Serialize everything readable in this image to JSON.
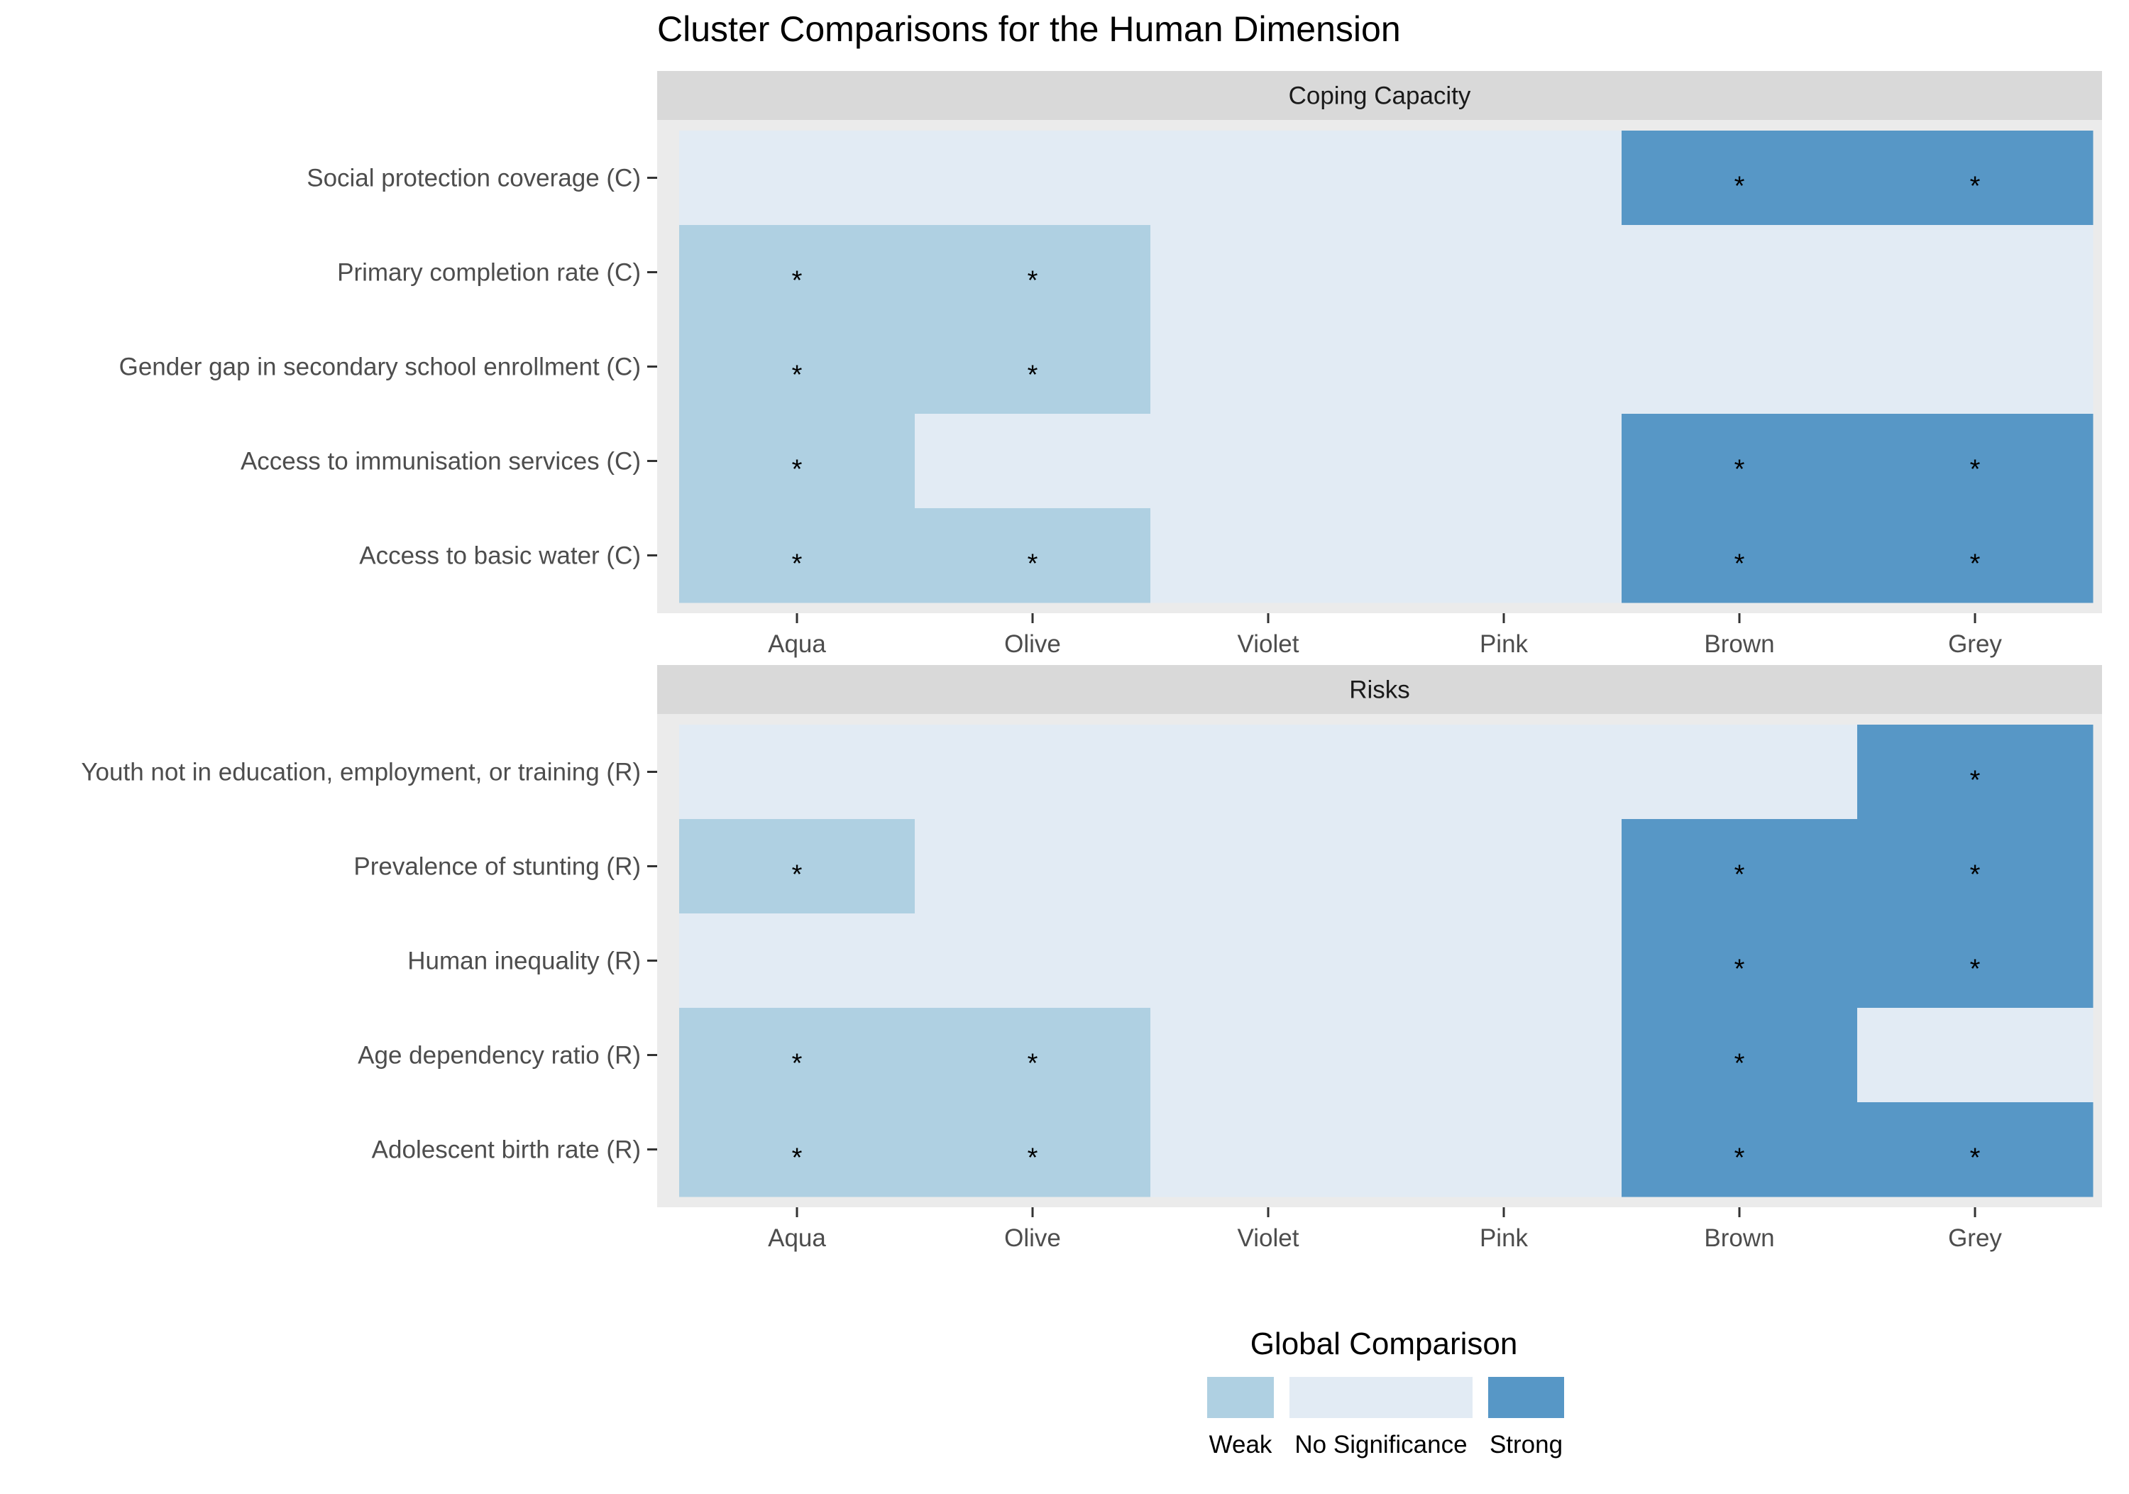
{
  "chart_data": {
    "type": "heatmap",
    "title": "Cluster Comparisons for the Human Dimension",
    "x_categories": [
      "Aqua",
      "Olive",
      "Violet",
      "Pink",
      "Brown",
      "Grey"
    ],
    "levels": [
      "Weak",
      "No Significance",
      "Strong"
    ],
    "level_colors": {
      "Weak": "#afd0e2",
      "No Significance": "#e2ebf4",
      "Strong": "#5797c6"
    },
    "significance_marker": "*",
    "panels": [
      {
        "name": "Coping Capacity",
        "rows": [
          {
            "label": "Social protection coverage (C)",
            "values": [
              "No Significance",
              "No Significance",
              "No Significance",
              "No Significance",
              "Strong",
              "Strong"
            ],
            "marks": [
              false,
              false,
              false,
              false,
              true,
              true
            ]
          },
          {
            "label": "Primary completion rate (C)",
            "values": [
              "Weak",
              "Weak",
              "No Significance",
              "No Significance",
              "No Significance",
              "No Significance"
            ],
            "marks": [
              true,
              true,
              false,
              false,
              false,
              false
            ]
          },
          {
            "label": "Gender gap in secondary school enrollment (C)",
            "values": [
              "Weak",
              "Weak",
              "No Significance",
              "No Significance",
              "No Significance",
              "No Significance"
            ],
            "marks": [
              true,
              true,
              false,
              false,
              false,
              false
            ]
          },
          {
            "label": "Access to immunisation services (C)",
            "values": [
              "Weak",
              "No Significance",
              "No Significance",
              "No Significance",
              "Strong",
              "Strong"
            ],
            "marks": [
              true,
              false,
              false,
              false,
              true,
              true
            ]
          },
          {
            "label": "Access to basic water (C)",
            "values": [
              "Weak",
              "Weak",
              "No Significance",
              "No Significance",
              "Strong",
              "Strong"
            ],
            "marks": [
              true,
              true,
              false,
              false,
              true,
              true
            ]
          }
        ]
      },
      {
        "name": "Risks",
        "rows": [
          {
            "label": "Youth not in education, employment, or training (R)",
            "values": [
              "No Significance",
              "No Significance",
              "No Significance",
              "No Significance",
              "No Significance",
              "Strong"
            ],
            "marks": [
              false,
              false,
              false,
              false,
              false,
              true
            ]
          },
          {
            "label": "Prevalence of stunting (R)",
            "values": [
              "Weak",
              "No Significance",
              "No Significance",
              "No Significance",
              "Strong",
              "Strong"
            ],
            "marks": [
              true,
              false,
              false,
              false,
              true,
              true
            ]
          },
          {
            "label": "Human inequality (R)",
            "values": [
              "No Significance",
              "No Significance",
              "No Significance",
              "No Significance",
              "Strong",
              "Strong"
            ],
            "marks": [
              false,
              false,
              false,
              false,
              true,
              true
            ]
          },
          {
            "label": "Age dependency ratio (R)",
            "values": [
              "Weak",
              "Weak",
              "No Significance",
              "No Significance",
              "Strong",
              "No Significance"
            ],
            "marks": [
              true,
              true,
              false,
              false,
              true,
              false
            ]
          },
          {
            "label": "Adolescent birth rate (R)",
            "values": [
              "Weak",
              "Weak",
              "No Significance",
              "No Significance",
              "Strong",
              "Strong"
            ],
            "marks": [
              true,
              true,
              false,
              false,
              true,
              true
            ]
          }
        ]
      }
    ],
    "legend": {
      "title": "Global Comparison",
      "items": [
        "Weak",
        "No Significance",
        "Strong"
      ],
      "position": "bottom"
    },
    "colors": {
      "panel_bg": "#ebebeb",
      "strip_bg": "#d9d9d9",
      "axis_text": "#4d4d4d"
    }
  }
}
